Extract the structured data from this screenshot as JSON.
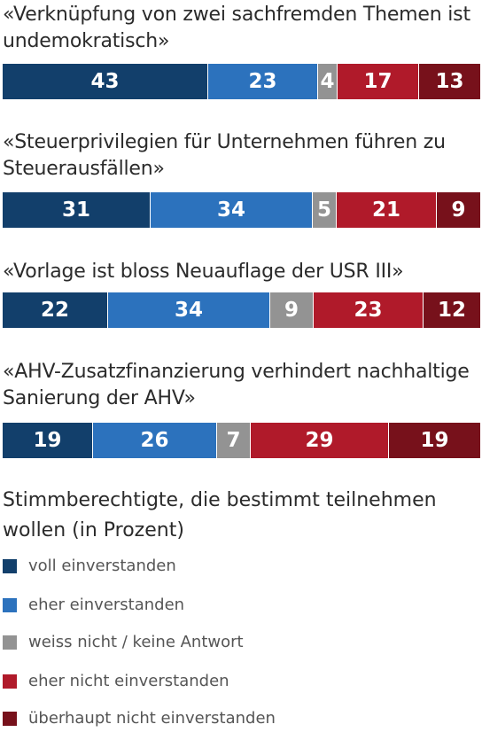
{
  "chart_data": {
    "type": "bar",
    "orientation": "horizontal-stacked-100",
    "statements": [
      {
        "label": "«Verknüpfung von zwei sachfremden Themen ist undemokratisch»",
        "values": [
          43,
          23,
          4,
          17,
          13
        ]
      },
      {
        "label": "«Steuerprivilegien für Unternehmen führen zu Steuerausfällen»",
        "values": [
          31,
          34,
          5,
          21,
          9
        ]
      },
      {
        "label": "«Vorlage ist bloss Neuauflage der USR III»",
        "values": [
          22,
          34,
          9,
          23,
          12
        ]
      },
      {
        "label": "«AHV-Zusatzfinanzierung verhindert nachhaltige Sanierung der AHV»",
        "values": [
          19,
          26,
          7,
          29,
          19
        ]
      }
    ],
    "series": [
      {
        "name": "voll einverstanden",
        "color": "#123f6b"
      },
      {
        "name": "eher einverstanden",
        "color": "#2c72bd"
      },
      {
        "name": "weiss nicht / keine Antwort",
        "color": "#939393"
      },
      {
        "name": "eher nicht einverstanden",
        "color": "#b01a2a"
      },
      {
        "name": "überhaupt nicht einverstanden",
        "color": "#77111b"
      }
    ],
    "legend_title": "Stimmberechtigte, die bestimmt teilnehmen wollen (in Prozent)",
    "legend_position": "bottom"
  }
}
